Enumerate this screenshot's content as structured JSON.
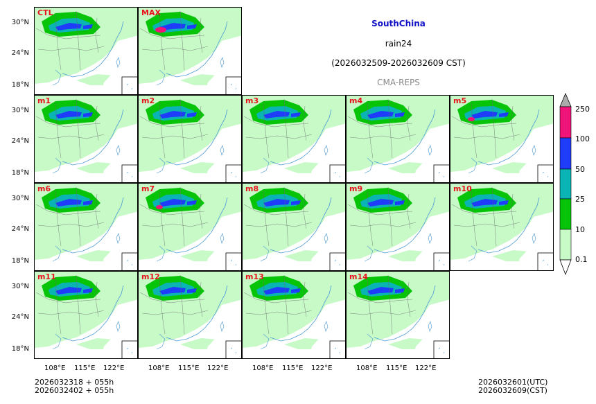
{
  "title": {
    "region": "SouthChina",
    "variable": "rain24",
    "period": "(2026032509-2026032609 CST)",
    "source": "CMA-REPS"
  },
  "panels": [
    {
      "label": "CTL"
    },
    {
      "label": "MAX"
    },
    {
      "label": "m1"
    },
    {
      "label": "m2"
    },
    {
      "label": "m3"
    },
    {
      "label": "m4"
    },
    {
      "label": "m5"
    },
    {
      "label": "m6"
    },
    {
      "label": "m7"
    },
    {
      "label": "m8"
    },
    {
      "label": "m9"
    },
    {
      "label": "m10"
    },
    {
      "label": "m11"
    },
    {
      "label": "m12"
    },
    {
      "label": "m13"
    },
    {
      "label": "m14"
    }
  ],
  "axes": {
    "lat_labels": [
      "30°N",
      "24°N",
      "18°N"
    ],
    "lon_labels": [
      "108°E",
      "115°E",
      "122°E"
    ]
  },
  "colorbar": {
    "levels": [
      "0.1",
      "10",
      "25",
      "50",
      "100",
      "250"
    ],
    "colors": [
      "#c8fac8",
      "#08c408",
      "#0ab4b4",
      "#1e3cfa",
      "#8c14dc",
      "#f0147a"
    ],
    "over_color": "#aaaaaa",
    "under_color": "#ffffff"
  },
  "footer": {
    "init_utc": "2026032318 + 055h",
    "init_cst": "2026032402 + 055h",
    "valid_utc": "2026032601(UTC)",
    "valid_cst": "2026032609(CST)"
  }
}
